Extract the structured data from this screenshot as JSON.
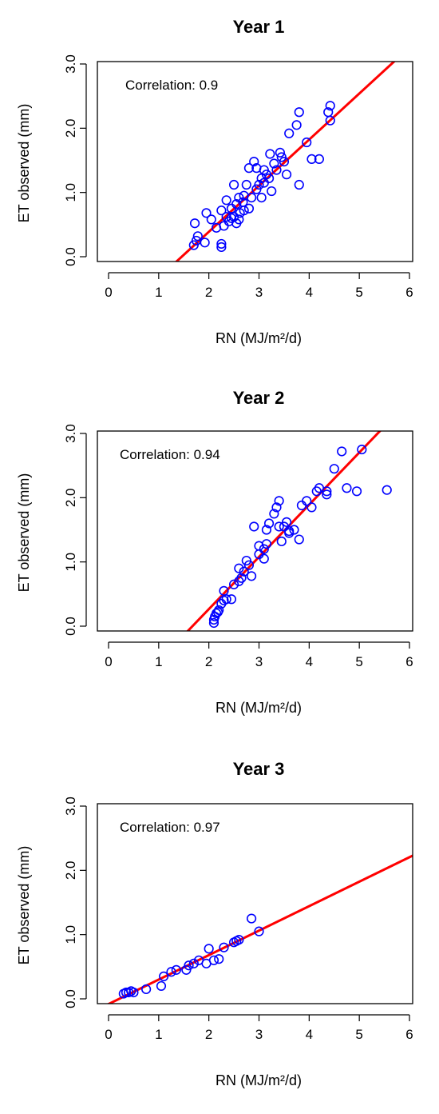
{
  "chart_data": [
    {
      "type": "scatter",
      "title": "Year 1",
      "xlabel": "RN (MJ/m²/d)",
      "ylabel": "ET observed (mm)",
      "annotation": "Correlation: 0.9",
      "xlim": [
        0,
        6
      ],
      "ylim": [
        0,
        3
      ],
      "xticks": [
        "0",
        "1",
        "2",
        "3",
        "4",
        "5",
        "6"
      ],
      "yticks": [
        "0.0",
        "1.0",
        "2.0",
        "3.0"
      ],
      "grid": false,
      "colors": {
        "points": "#0000ff",
        "line": "#ff0000"
      },
      "fit_line": {
        "x": [
          1.32,
          5.85
        ],
        "y": [
          -0.1,
          3.15
        ]
      },
      "points": [
        [
          1.75,
          0.25
        ],
        [
          1.72,
          0.52
        ],
        [
          1.78,
          0.32
        ],
        [
          1.95,
          0.68
        ],
        [
          2.05,
          0.58
        ],
        [
          2.15,
          0.45
        ],
        [
          2.25,
          0.72
        ],
        [
          2.3,
          0.48
        ],
        [
          2.35,
          0.88
        ],
        [
          2.4,
          0.55
        ],
        [
          2.45,
          0.75
        ],
        [
          2.5,
          1.12
        ],
        [
          2.5,
          0.62
        ],
        [
          2.55,
          0.82
        ],
        [
          2.6,
          0.92
        ],
        [
          2.62,
          0.68
        ],
        [
          2.68,
          0.85
        ],
        [
          2.7,
          0.95
        ],
        [
          2.75,
          1.12
        ],
        [
          2.8,
          0.75
        ],
        [
          2.85,
          0.92
        ],
        [
          2.8,
          1.38
        ],
        [
          2.9,
          1.48
        ],
        [
          2.95,
          1.05
        ],
        [
          3.0,
          1.12
        ],
        [
          3.05,
          1.22
        ],
        [
          3.05,
          0.92
        ],
        [
          3.1,
          1.35
        ],
        [
          3.15,
          1.28
        ],
        [
          3.2,
          1.22
        ],
        [
          3.22,
          1.6
        ],
        [
          3.25,
          1.02
        ],
        [
          3.3,
          1.45
        ],
        [
          3.35,
          1.35
        ],
        [
          3.42,
          1.62
        ],
        [
          3.45,
          1.55
        ],
        [
          3.55,
          1.28
        ],
        [
          3.6,
          1.92
        ],
        [
          3.75,
          2.05
        ],
        [
          3.8,
          2.25
        ],
        [
          3.8,
          1.12
        ],
        [
          3.95,
          1.78
        ],
        [
          4.05,
          1.52
        ],
        [
          4.2,
          1.52
        ],
        [
          4.38,
          2.25
        ],
        [
          4.42,
          2.35
        ],
        [
          4.42,
          2.12
        ],
        [
          1.92,
          0.22
        ],
        [
          2.25,
          0.15
        ],
        [
          2.55,
          0.52
        ],
        [
          2.6,
          0.58
        ],
        [
          2.7,
          0.72
        ],
        [
          2.95,
          1.38
        ],
        [
          3.1,
          1.15
        ],
        [
          3.5,
          1.48
        ],
        [
          2.45,
          0.6
        ],
        [
          2.35,
          0.62
        ],
        [
          1.7,
          0.18
        ],
        [
          2.25,
          0.2
        ]
      ]
    },
    {
      "type": "scatter",
      "title": "Year 2",
      "xlabel": "RN (MJ/m²/d)",
      "ylabel": "ET observed (mm)",
      "annotation": "Correlation: 0.94",
      "xlim": [
        0,
        6
      ],
      "ylim": [
        0,
        3
      ],
      "xticks": [
        "0",
        "1",
        "2",
        "3",
        "4",
        "5",
        "6"
      ],
      "yticks": [
        "0.0",
        "1.0",
        "2.0",
        "3.0"
      ],
      "grid": false,
      "colors": {
        "points": "#0000ff",
        "line": "#ff0000"
      },
      "fit_line": {
        "x": [
          1.55,
          5.55
        ],
        "y": [
          -0.1,
          3.15
        ]
      },
      "points": [
        [
          2.1,
          0.05
        ],
        [
          2.1,
          0.1
        ],
        [
          2.12,
          0.15
        ],
        [
          2.15,
          0.2
        ],
        [
          2.18,
          0.22
        ],
        [
          2.2,
          0.25
        ],
        [
          2.25,
          0.35
        ],
        [
          2.3,
          0.4
        ],
        [
          2.35,
          0.42
        ],
        [
          2.3,
          0.55
        ],
        [
          2.45,
          0.42
        ],
        [
          2.5,
          0.65
        ],
        [
          2.6,
          0.7
        ],
        [
          2.65,
          0.75
        ],
        [
          2.7,
          0.85
        ],
        [
          2.75,
          1.02
        ],
        [
          2.8,
          0.95
        ],
        [
          2.85,
          0.78
        ],
        [
          2.9,
          1.55
        ],
        [
          3.0,
          1.12
        ],
        [
          3.0,
          1.25
        ],
        [
          3.1,
          1.2
        ],
        [
          3.15,
          1.28
        ],
        [
          3.15,
          1.5
        ],
        [
          3.2,
          1.6
        ],
        [
          3.3,
          1.75
        ],
        [
          3.35,
          1.85
        ],
        [
          3.4,
          1.95
        ],
        [
          3.4,
          1.55
        ],
        [
          3.45,
          1.32
        ],
        [
          3.5,
          1.55
        ],
        [
          3.55,
          1.62
        ],
        [
          3.6,
          1.45
        ],
        [
          3.7,
          1.5
        ],
        [
          3.8,
          1.35
        ],
        [
          3.85,
          1.88
        ],
        [
          3.95,
          1.95
        ],
        [
          4.05,
          1.85
        ],
        [
          4.15,
          2.1
        ],
        [
          4.2,
          2.15
        ],
        [
          4.35,
          2.1
        ],
        [
          4.5,
          2.45
        ],
        [
          4.65,
          2.72
        ],
        [
          4.75,
          2.15
        ],
        [
          4.95,
          2.1
        ],
        [
          5.05,
          2.75
        ],
        [
          5.55,
          2.12
        ],
        [
          2.6,
          0.9
        ],
        [
          3.1,
          1.05
        ],
        [
          3.6,
          1.48
        ],
        [
          4.35,
          2.05
        ]
      ]
    },
    {
      "type": "scatter",
      "title": "Year 3",
      "xlabel": "RN (MJ/m²/d)",
      "ylabel": "ET observed (mm)",
      "annotation": "Correlation: 0.97",
      "xlim": [
        0,
        6
      ],
      "ylim": [
        0,
        3
      ],
      "xticks": [
        "0",
        "1",
        "2",
        "3",
        "4",
        "5",
        "6"
      ],
      "yticks": [
        "0.0",
        "1.0",
        "2.0",
        "3.0"
      ],
      "grid": false,
      "colors": {
        "points": "#0000ff",
        "line": "#ff0000"
      },
      "fit_line": {
        "x": [
          -0.05,
          6.25
        ],
        "y": [
          -0.1,
          2.3
        ]
      },
      "points": [
        [
          0.3,
          0.08
        ],
        [
          0.35,
          0.1
        ],
        [
          0.4,
          0.1
        ],
        [
          0.45,
          0.12
        ],
        [
          0.5,
          0.1
        ],
        [
          0.75,
          0.15
        ],
        [
          1.05,
          0.2
        ],
        [
          1.1,
          0.35
        ],
        [
          1.25,
          0.42
        ],
        [
          1.35,
          0.45
        ],
        [
          1.55,
          0.45
        ],
        [
          1.6,
          0.52
        ],
        [
          1.7,
          0.55
        ],
        [
          1.8,
          0.6
        ],
        [
          1.95,
          0.55
        ],
        [
          2.0,
          0.78
        ],
        [
          2.1,
          0.6
        ],
        [
          2.2,
          0.62
        ],
        [
          2.3,
          0.8
        ],
        [
          2.5,
          0.88
        ],
        [
          2.55,
          0.9
        ],
        [
          2.6,
          0.92
        ],
        [
          2.85,
          1.25
        ],
        [
          3.0,
          1.05
        ]
      ]
    }
  ]
}
